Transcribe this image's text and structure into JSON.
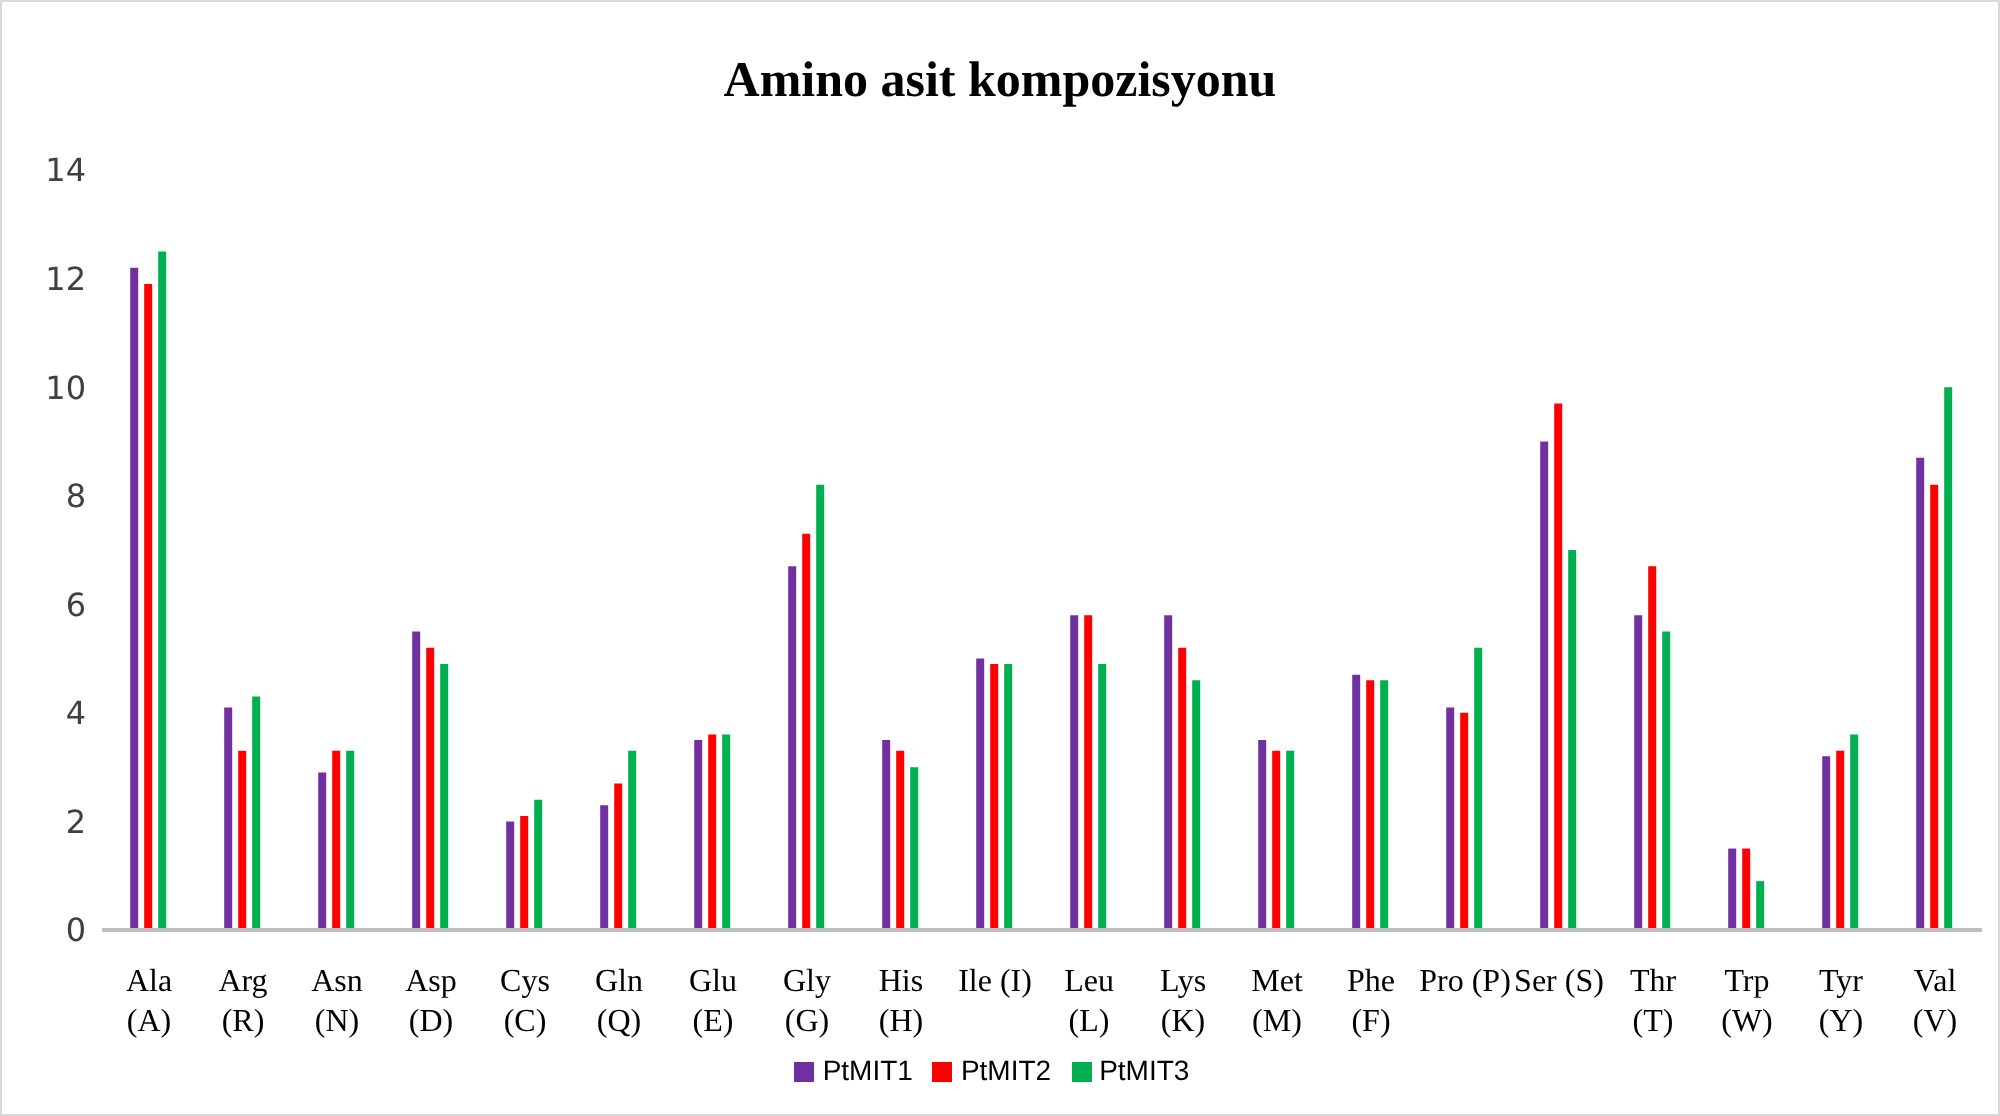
{
  "chart_data": {
    "type": "bar",
    "title": "Amino asit kompozisyonu",
    "categories": [
      "Ala (A)",
      "Arg (R)",
      "Asn (N)",
      "Asp (D)",
      "Cys (C)",
      "Gln (Q)",
      "Glu (E)",
      "Gly (G)",
      "His (H)",
      "Ile (I)",
      "Leu (L)",
      "Lys (K)",
      "Met (M)",
      "Phe (F)",
      "Pro (P)",
      "Ser (S)",
      "Thr (T)",
      "Trp (W)",
      "Tyr (Y)",
      "Val (V)"
    ],
    "series": [
      {
        "name": "PtMIT1",
        "color": "#7030a0",
        "values": [
          12.2,
          4.1,
          2.9,
          5.5,
          2.0,
          2.3,
          3.5,
          6.7,
          3.5,
          5.0,
          5.8,
          5.8,
          3.5,
          4.7,
          4.1,
          9.0,
          5.8,
          1.5,
          3.2,
          8.7
        ]
      },
      {
        "name": "PtMIT2",
        "color": "#ff0000",
        "values": [
          11.9,
          3.3,
          3.3,
          5.2,
          2.1,
          2.7,
          3.6,
          7.3,
          3.3,
          4.9,
          5.8,
          5.2,
          3.3,
          4.6,
          4.0,
          9.7,
          6.7,
          1.5,
          3.3,
          8.2
        ]
      },
      {
        "name": "PtMIT3",
        "color": "#00b050",
        "values": [
          12.5,
          4.3,
          3.3,
          4.9,
          2.4,
          3.3,
          3.6,
          8.2,
          3.0,
          4.9,
          4.9,
          4.6,
          3.3,
          4.6,
          5.2,
          7.0,
          5.5,
          0.9,
          3.6,
          10.0
        ]
      }
    ],
    "ylim": [
      0,
      14
    ],
    "yticks": [
      0,
      2,
      4,
      6,
      8,
      10,
      12,
      14
    ],
    "grid": false,
    "legend": "bottom"
  }
}
